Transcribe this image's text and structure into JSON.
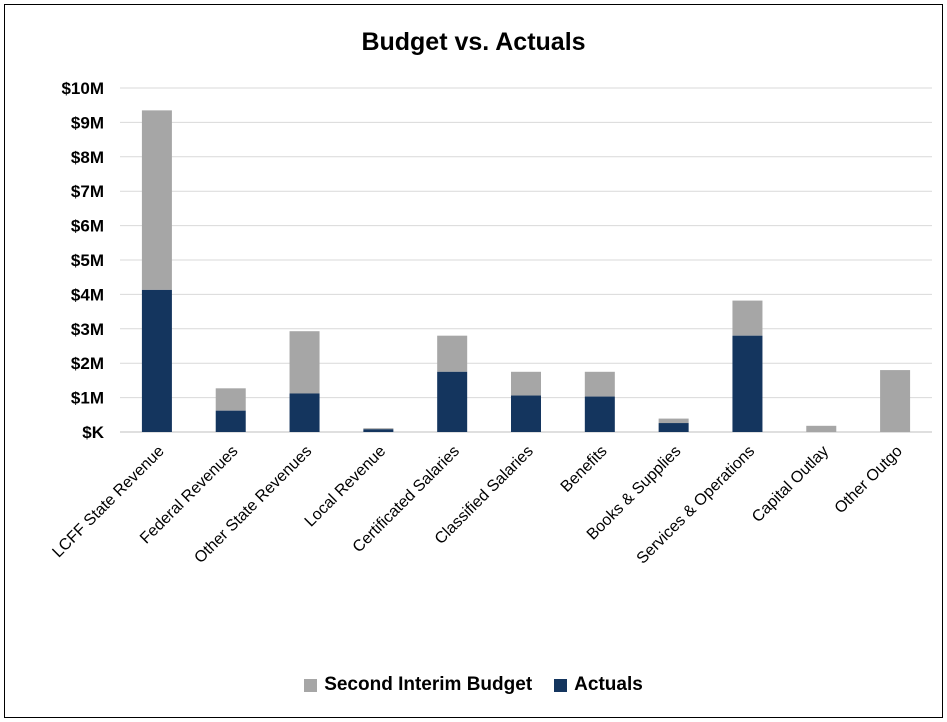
{
  "chart_data": {
    "type": "bar",
    "stacked": true,
    "title": "Budget vs. Actuals",
    "xlabel": "",
    "ylabel": "",
    "ylim": [
      0,
      10000000
    ],
    "y_ticks": [
      0,
      1000000,
      2000000,
      3000000,
      4000000,
      5000000,
      6000000,
      7000000,
      8000000,
      9000000,
      10000000
    ],
    "y_tick_labels": [
      "$K",
      "$1M",
      "$2M",
      "$3M",
      "$4M",
      "$5M",
      "$6M",
      "$7M",
      "$8M",
      "$9M",
      "$10M"
    ],
    "grid": true,
    "legend_position": "bottom",
    "categories": [
      "LCFF State Revenue",
      "Federal Revenues",
      "Other State Revenues",
      "Local Revenue",
      "Certificated Salaries",
      "Classified Salaries",
      "Benefits",
      "Books & Supplies",
      "Services & Operations",
      "Capital Outlay",
      "Other Outgo"
    ],
    "series": [
      {
        "name": "Second Interim Budget",
        "color": "#a6a6a6",
        "stack_total": [
          9350000,
          1270000,
          2930000,
          110000,
          2800000,
          1750000,
          1750000,
          390000,
          3820000,
          180000,
          1800000
        ]
      },
      {
        "name": "Actuals",
        "color": "#14355e",
        "values": [
          4130000,
          620000,
          1120000,
          80000,
          1750000,
          1060000,
          1030000,
          260000,
          2800000,
          0,
          0
        ]
      }
    ]
  }
}
